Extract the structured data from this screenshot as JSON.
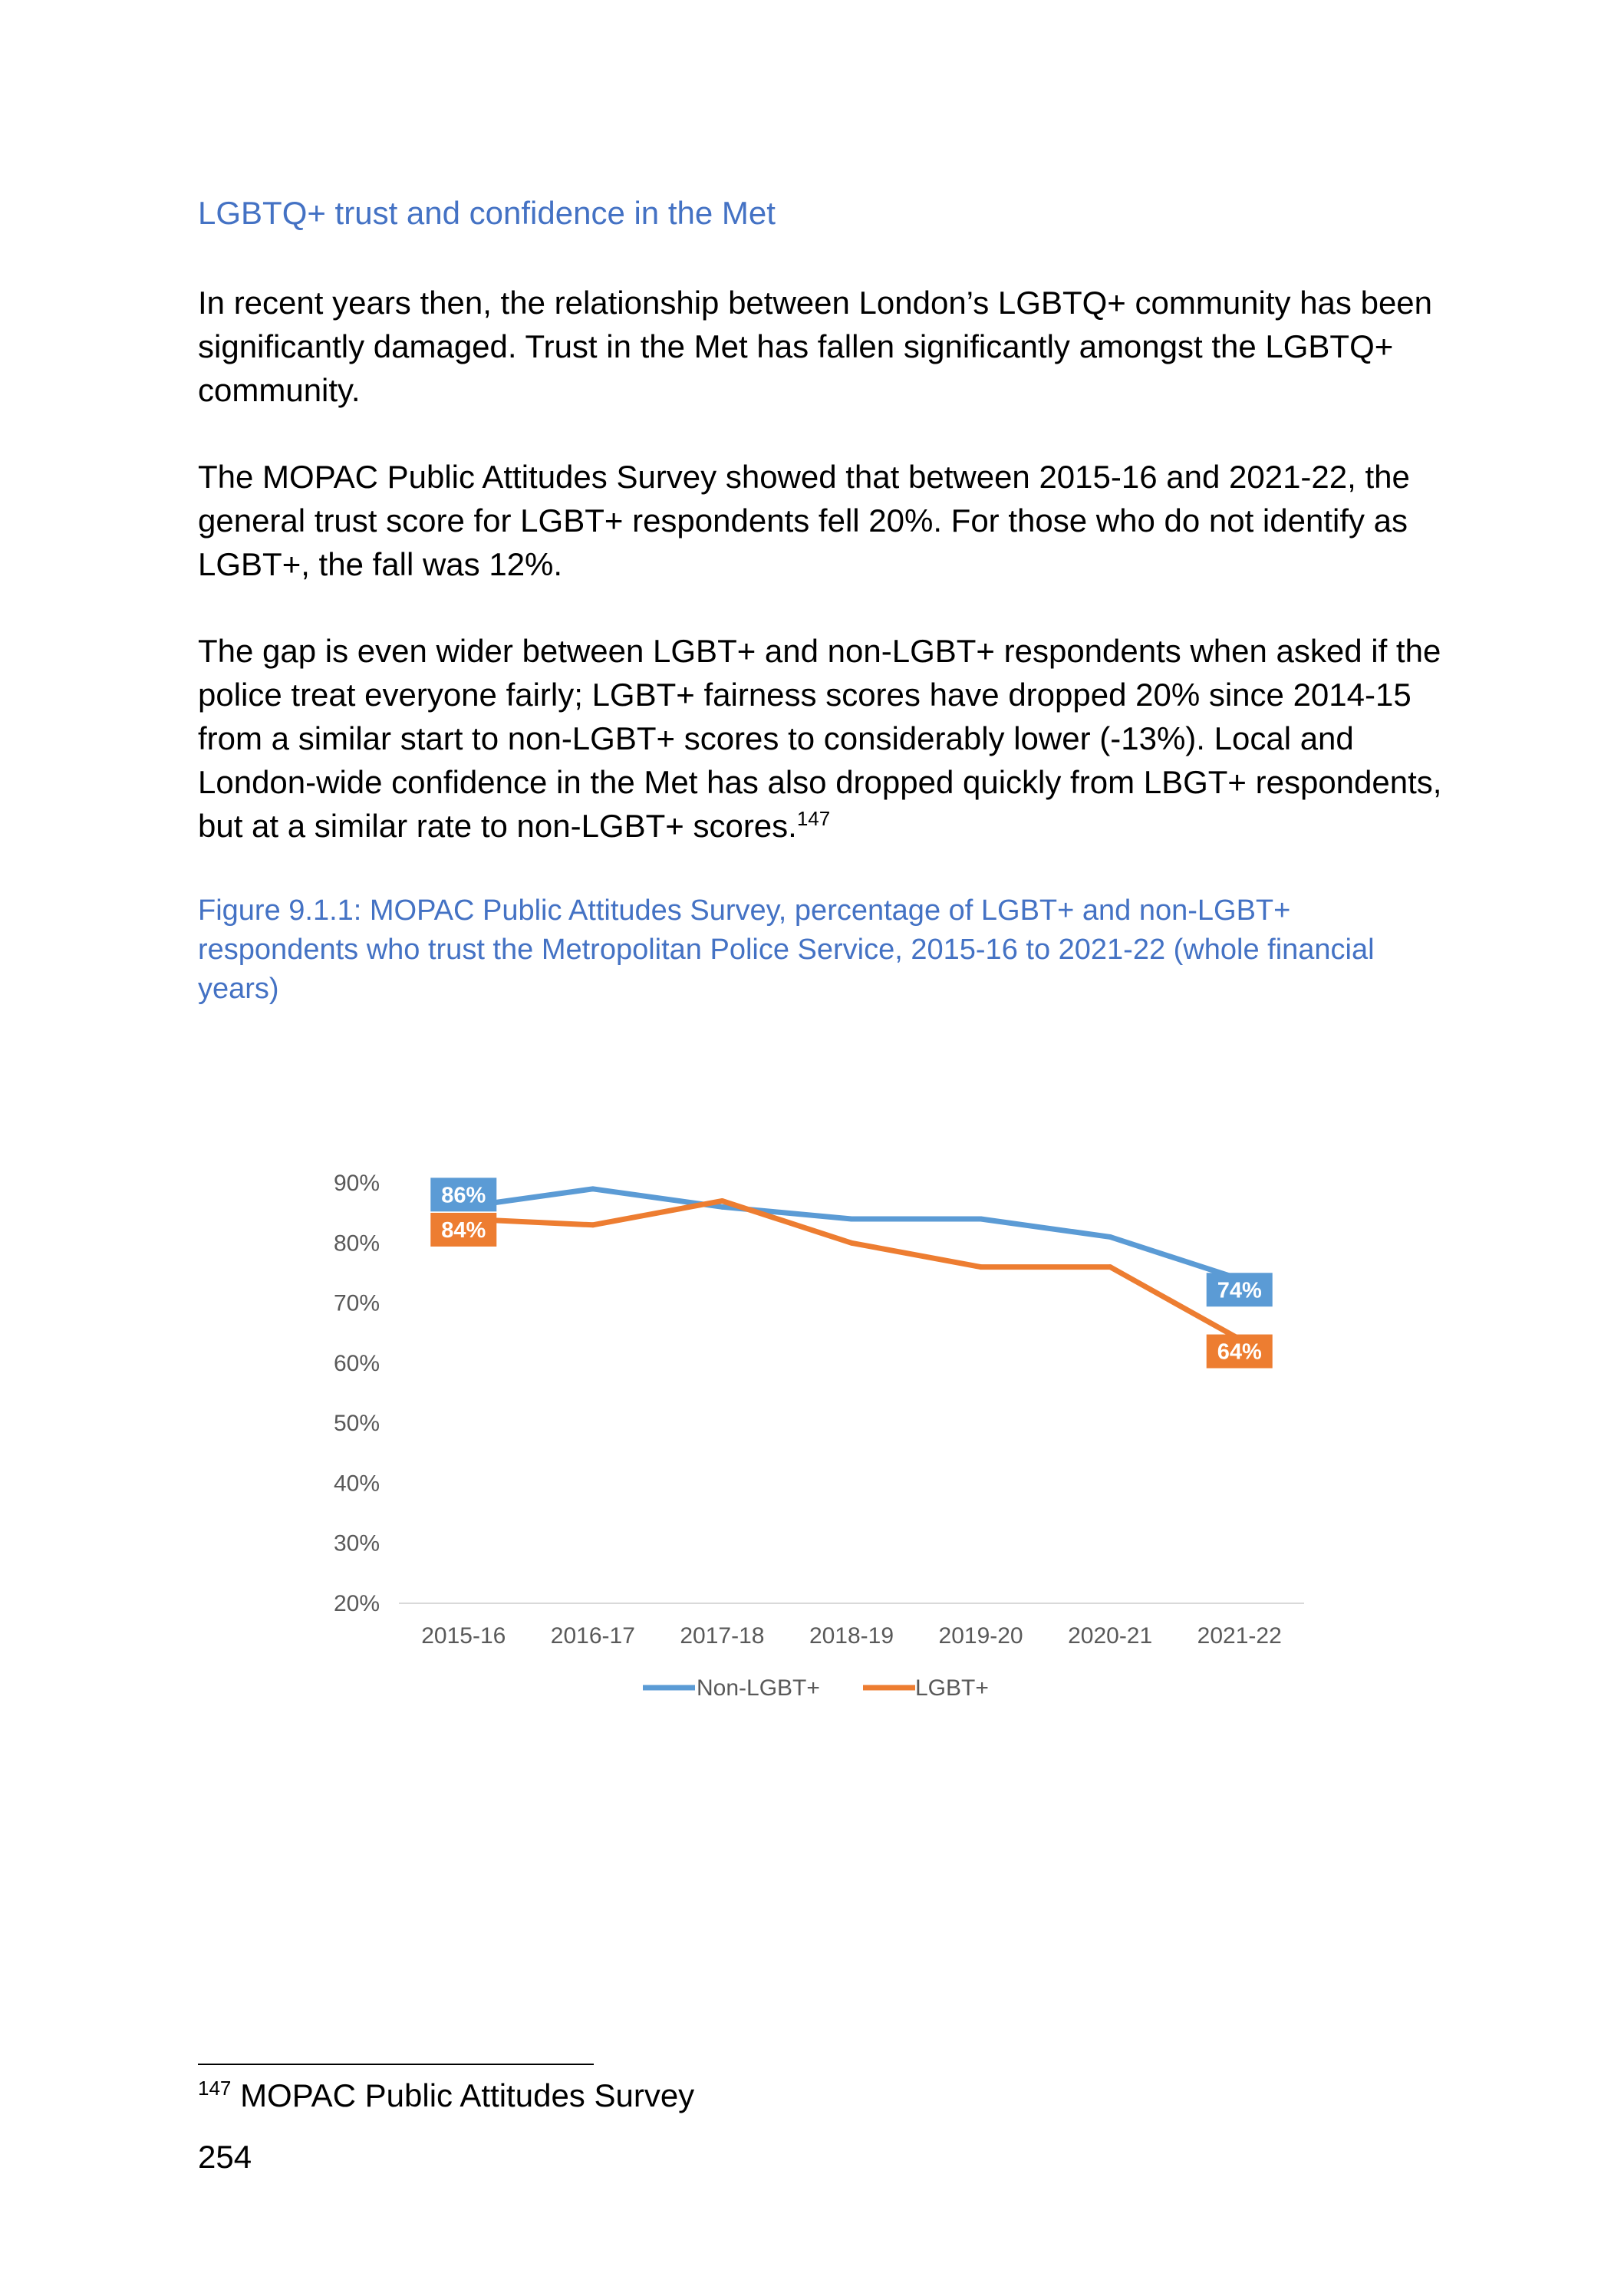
{
  "heading": "LGBTQ+ trust and confidence in the Met",
  "paragraphs": {
    "p1": "In recent years then, the relationship between London’s LGBTQ+ community has been significantly damaged. Trust in the Met has fallen significantly amongst the LGBTQ+ community.",
    "p2": "The MOPAC Public Attitudes Survey showed that between 2015-16 and 2021-22, the general trust score for LGBT+ respondents fell 20%. For those who do not identify as LGBT+, the fall was 12%.",
    "p3": "The gap is even wider between LGBT+ and non-LGBT+ respondents when asked if the police treat everyone fairly; LGBT+ fairness scores have dropped 20% since 2014-15 from a similar start to non-LGBT+ scores to considerably lower (-13%). Local and London-wide confidence in the Met has also dropped quickly from LBGT+ respondents, but at a similar rate to non-LGBT+ scores.",
    "p3_ref": "147"
  },
  "caption": "Figure 9.1.1: MOPAC Public Attitudes Survey, percentage of LGBT+ and non-LGBT+ respondents who trust the Metropolitan Police Service, 2015-16 to 2021-22 (whole financial years)",
  "chart_data": {
    "type": "line",
    "categories": [
      "2015-16",
      "2016-17",
      "2017-18",
      "2018-19",
      "2019-20",
      "2020-21",
      "2021-22"
    ],
    "series": [
      {
        "name": "Non-LGBT+",
        "color": "#5b9bd5",
        "values": [
          86,
          89,
          86,
          84,
          84,
          81,
          74
        ],
        "labels": {
          "0": "86%",
          "6": "74%"
        }
      },
      {
        "name": "LGBT+",
        "color": "#ed7d31",
        "values": [
          84,
          83,
          87,
          80,
          76,
          76,
          64
        ],
        "labels": {
          "0": "84%",
          "6": "64%"
        }
      }
    ],
    "ylim": [
      20,
      90
    ],
    "yticks": [
      20,
      30,
      40,
      50,
      60,
      70,
      80,
      90
    ],
    "ytick_labels": [
      "20%",
      "30%",
      "40%",
      "50%",
      "60%",
      "70%",
      "80%",
      "90%"
    ],
    "grid": false,
    "legend_position": "bottom"
  },
  "footnote": {
    "number": "147",
    "text": "MOPAC Public Attitudes Survey"
  },
  "page_number": "254"
}
